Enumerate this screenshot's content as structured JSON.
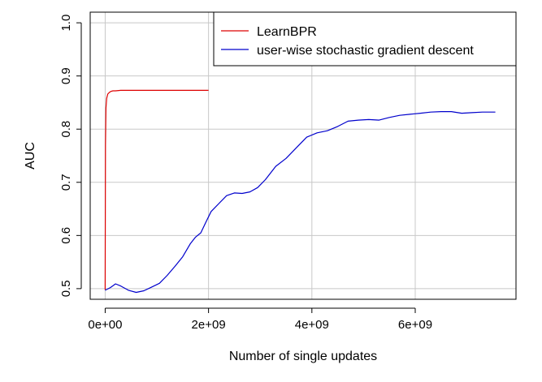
{
  "chart_data": {
    "type": "line",
    "title": "",
    "xlabel": "Number of single updates",
    "ylabel": "AUC",
    "xlim": [
      -290000000.0,
      7950000000.0
    ],
    "ylim": [
      0.48,
      1.02
    ],
    "grid": true,
    "legend_position": "top-right",
    "x_ticks": [
      {
        "value": 0,
        "label": "0e+00"
      },
      {
        "value": 2000000000,
        "label": "2e+09"
      },
      {
        "value": 4000000000,
        "label": "4e+09"
      },
      {
        "value": 6000000000,
        "label": "6e+09"
      }
    ],
    "y_ticks": [
      {
        "value": 0.5,
        "label": "0.5"
      },
      {
        "value": 0.6,
        "label": "0.6"
      },
      {
        "value": 0.7,
        "label": "0.7"
      },
      {
        "value": 0.8,
        "label": "0.8"
      },
      {
        "value": 0.9,
        "label": "0.9"
      },
      {
        "value": 1.0,
        "label": "1.0"
      }
    ],
    "series": [
      {
        "name": "LearnBPR",
        "color": "#dd0000",
        "x": [
          0,
          5000000,
          15000000,
          30000000,
          50000000,
          80000000,
          110000000,
          150000000,
          200000000,
          300000000,
          500000000,
          800000000,
          1200000000,
          1600000000,
          2000000000
        ],
        "y": [
          0.498,
          0.77,
          0.84,
          0.858,
          0.866,
          0.869,
          0.871,
          0.872,
          0.872,
          0.873,
          0.873,
          0.873,
          0.873,
          0.873,
          0.873
        ]
      },
      {
        "name": "user-wise stochastic gradient descent",
        "color": "#0000cc",
        "x": [
          0,
          100000000,
          200000000,
          300000000,
          450000000,
          600000000,
          750000000,
          900000000,
          1050000000,
          1200000000,
          1350000000,
          1500000000,
          1650000000,
          1750000000,
          1850000000,
          1950000000,
          2050000000,
          2200000000,
          2350000000,
          2500000000,
          2650000000,
          2800000000,
          2950000000,
          3100000000,
          3300000000,
          3500000000,
          3700000000,
          3900000000,
          4100000000,
          4300000000,
          4500000000,
          4700000000,
          4900000000,
          5100000000,
          5300000000,
          5500000000,
          5700000000,
          5900000000,
          6100000000,
          6300000000,
          6500000000,
          6700000000,
          6900000000,
          7100000000,
          7300000000,
          7550000000
        ],
        "y": [
          0.497,
          0.502,
          0.509,
          0.505,
          0.497,
          0.493,
          0.496,
          0.503,
          0.51,
          0.525,
          0.542,
          0.56,
          0.585,
          0.597,
          0.605,
          0.625,
          0.645,
          0.66,
          0.675,
          0.68,
          0.679,
          0.682,
          0.69,
          0.705,
          0.73,
          0.745,
          0.765,
          0.785,
          0.793,
          0.797,
          0.805,
          0.815,
          0.817,
          0.818,
          0.817,
          0.822,
          0.826,
          0.828,
          0.83,
          0.832,
          0.833,
          0.833,
          0.83,
          0.831,
          0.832,
          0.832
        ]
      }
    ]
  }
}
